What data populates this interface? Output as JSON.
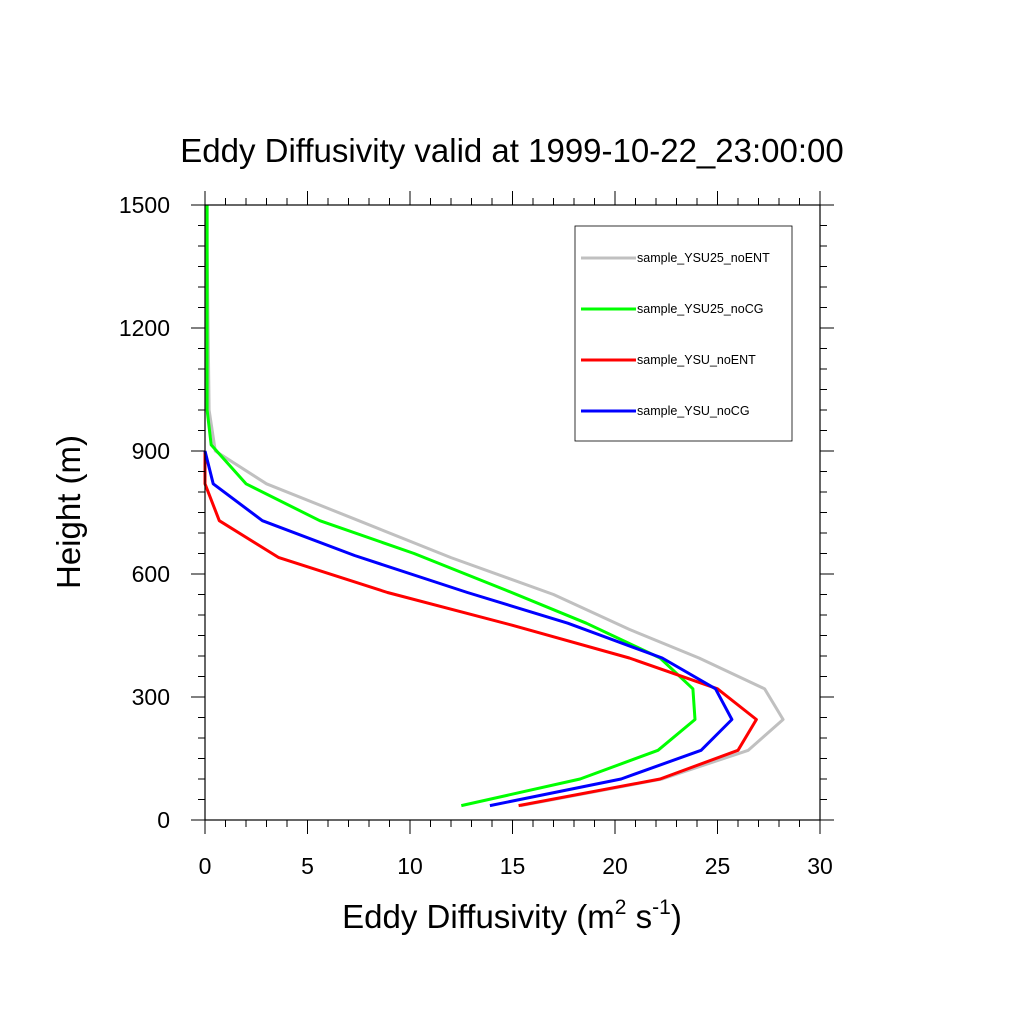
{
  "chart_data": {
    "type": "line",
    "title": "Eddy Diffusivity valid at 1999-10-22_23:00:00",
    "xlabel_main": "Eddy Diffusivity (m",
    "xlabel_sup1": "2",
    "xlabel_mid": " s",
    "xlabel_sup2": "-1",
    "xlabel_end": ")",
    "ylabel": "Height (m)",
    "xlim": [
      0,
      30
    ],
    "ylim": [
      0,
      1500
    ],
    "xticks": [
      "0",
      "5",
      "10",
      "15",
      "20",
      "25",
      "30"
    ],
    "yticks": [
      "0",
      "300",
      "600",
      "900",
      "1200",
      "1500"
    ],
    "xtick_values": [
      0,
      5,
      10,
      15,
      20,
      25,
      30
    ],
    "ytick_values": [
      0,
      300,
      600,
      900,
      1200,
      1500
    ],
    "grid": false,
    "legend_position": "top-right",
    "series": [
      {
        "name": "sample_YSU25_noENT",
        "color": "#c0c0c0",
        "x": [
          15.4,
          22.3,
          26.5,
          28.2,
          27.3,
          24.1,
          20.7,
          17.0,
          12.0,
          7.5,
          3.0,
          0.5,
          0.2,
          0.15,
          0.1,
          0.1
        ],
        "y": [
          35,
          100,
          170,
          245,
          320,
          395,
          465,
          550,
          640,
          730,
          820,
          900,
          1000,
          1200,
          1400,
          1500
        ]
      },
      {
        "name": "sample_YSU25_noCG",
        "color": "#00ff00",
        "x": [
          12.5,
          18.3,
          22.1,
          23.9,
          23.8,
          22.2,
          18.6,
          14.7,
          10.2,
          5.6,
          2.0,
          0.3,
          0.1,
          0.1,
          0.1,
          0.1
        ],
        "y": [
          35,
          100,
          170,
          245,
          320,
          395,
          480,
          560,
          650,
          730,
          820,
          915,
          1000,
          1200,
          1400,
          1500
        ]
      },
      {
        "name": "sample_YSU_noENT",
        "color": "#ff0000",
        "x": [
          15.3,
          22.2,
          26.0,
          26.9,
          25.0,
          20.7,
          15.0,
          8.9,
          3.6,
          0.7,
          0.0,
          0.0
        ],
        "y": [
          35,
          100,
          170,
          245,
          320,
          395,
          475,
          555,
          640,
          730,
          820,
          900
        ]
      },
      {
        "name": "sample_YSU_noCG",
        "color": "#0000ff",
        "x": [
          13.9,
          20.3,
          24.2,
          25.7,
          24.9,
          22.3,
          17.7,
          12.8,
          7.3,
          2.8,
          0.4,
          0.0
        ],
        "y": [
          35,
          100,
          170,
          245,
          320,
          395,
          480,
          555,
          645,
          730,
          820,
          900
        ]
      }
    ]
  }
}
